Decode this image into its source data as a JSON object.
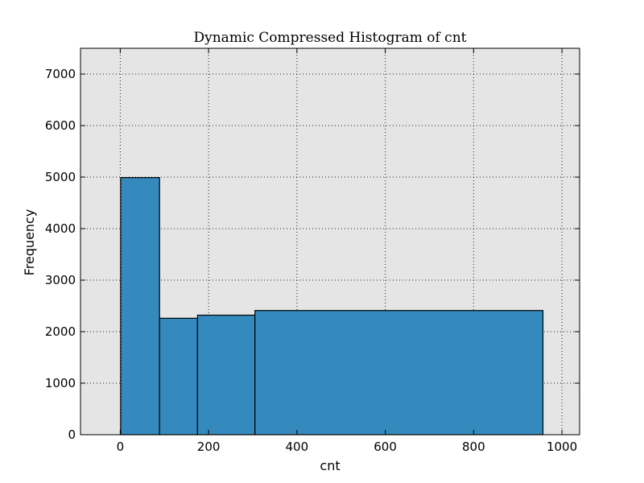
{
  "chart_data": {
    "type": "bar",
    "title": "Dynamic Compressed Histogram of cnt",
    "xlabel": "cnt",
    "ylabel": "Frequency",
    "xlim": [
      -90,
      1040
    ],
    "ylim": [
      0,
      7500
    ],
    "xticks": [
      0,
      200,
      400,
      600,
      800,
      1000
    ],
    "yticks": [
      0,
      1000,
      2000,
      3000,
      4000,
      5000,
      6000,
      7000
    ],
    "grid": true,
    "bins": [
      {
        "start": 1,
        "end": 89,
        "value": 4990
      },
      {
        "start": 89,
        "end": 175,
        "value": 2260
      },
      {
        "start": 175,
        "end": 305,
        "value": 2320
      },
      {
        "start": 305,
        "end": 957,
        "value": 2410
      }
    ],
    "colors": {
      "bar": "#348ABD",
      "plot_background": "#E5E5E5",
      "edge": "#000000"
    }
  }
}
